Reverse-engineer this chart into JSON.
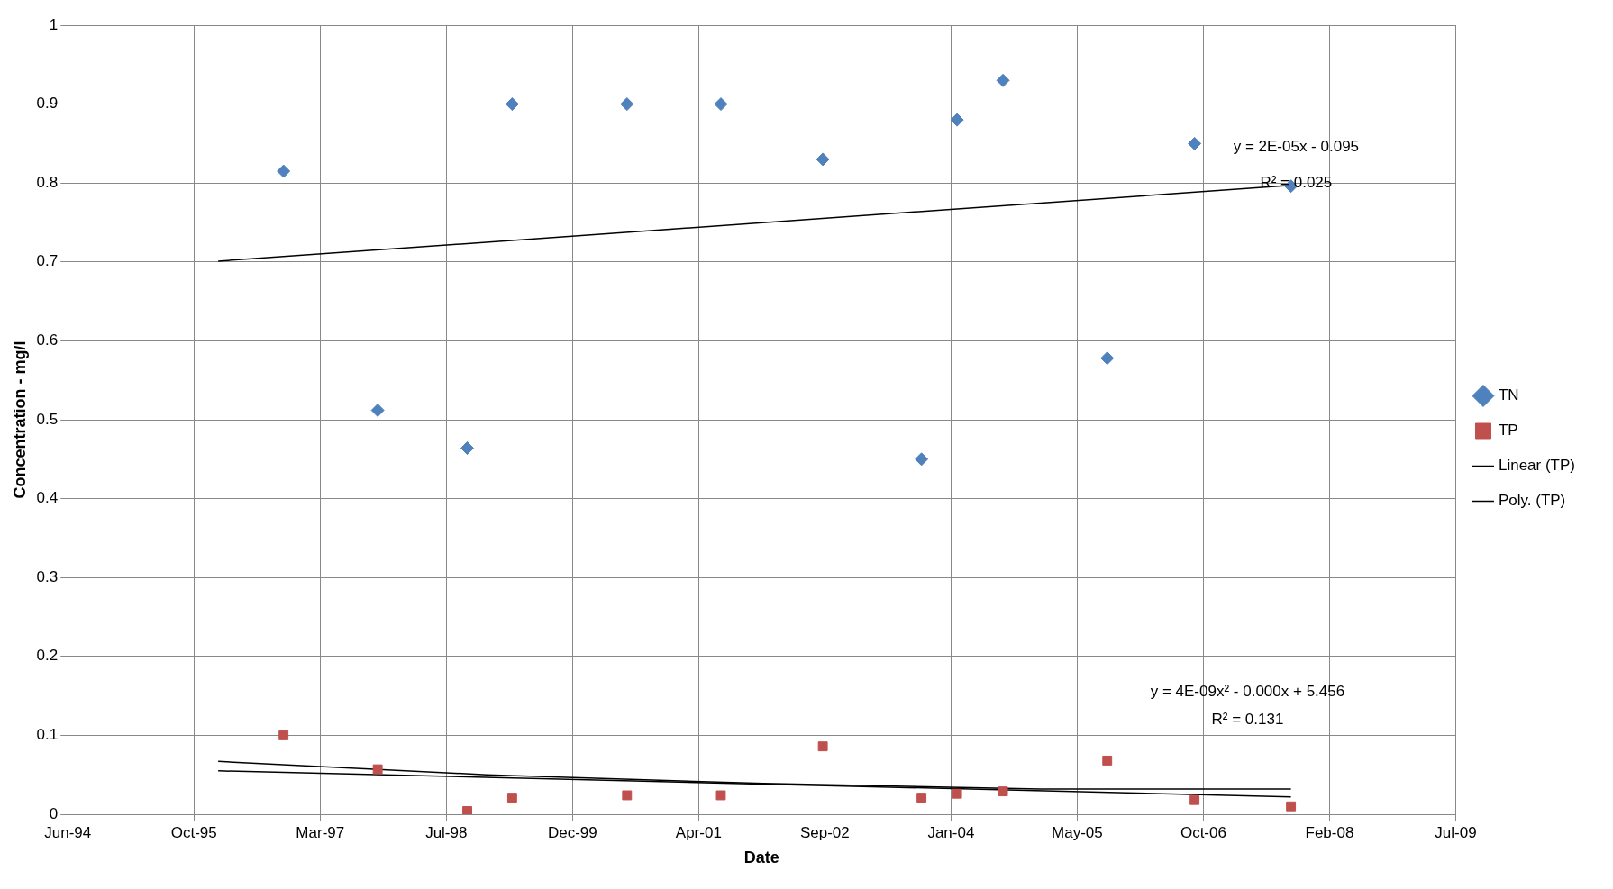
{
  "chart_data": {
    "type": "scatter",
    "xlabel": "Date",
    "ylabel": "Concentration - mg/l",
    "xlim": [
      "1994-06-15",
      "2009-07-06"
    ],
    "xticks": [
      {
        "value": "1994-06-15",
        "label": "Jun-94"
      },
      {
        "value": "1995-10-28",
        "label": "Oct-95"
      },
      {
        "value": "1997-03-11",
        "label": "Mar-97"
      },
      {
        "value": "1998-07-24",
        "label": "Jul-98"
      },
      {
        "value": "1999-12-06",
        "label": "Dec-99"
      },
      {
        "value": "2001-04-19",
        "label": "Apr-01"
      },
      {
        "value": "2002-09-01",
        "label": "Sep-02"
      },
      {
        "value": "2004-01-14",
        "label": "Jan-04"
      },
      {
        "value": "2005-05-28",
        "label": "May-05"
      },
      {
        "value": "2006-10-10",
        "label": "Oct-06"
      },
      {
        "value": "2008-02-22",
        "label": "Feb-08"
      },
      {
        "value": "2009-07-06",
        "label": "Jul-09"
      }
    ],
    "ylim": [
      0,
      1
    ],
    "yticks": [
      0,
      0.1,
      0.2,
      0.3,
      0.4,
      0.5,
      0.6,
      0.7,
      0.8,
      0.9,
      1
    ],
    "grid": true,
    "legend": "right",
    "series": [
      {
        "name": "TN",
        "type": "scatter",
        "marker": "diamond",
        "color": "#4f81bd",
        "x": [
          "1996-10-17",
          "1997-10-25",
          "1998-10-15",
          "1999-04-11",
          "2000-07-09",
          "2001-07-16",
          "2002-08-24",
          "2003-09-19",
          "2004-02-07",
          "2004-08-07",
          "2005-09-24",
          "2006-09-05",
          "2007-09-22"
        ],
        "values": [
          0.815,
          0.512,
          0.464,
          0.9,
          0.9,
          0.9,
          0.83,
          0.45,
          0.88,
          0.93,
          0.578,
          0.85,
          0.796
        ]
      },
      {
        "name": "TP",
        "type": "scatter",
        "marker": "square",
        "color": "#c0504d",
        "x": [
          "1996-10-17",
          "1997-10-25",
          "1998-10-15",
          "1999-04-11",
          "2000-07-09",
          "2001-07-16",
          "2002-08-24",
          "2003-09-19",
          "2004-02-07",
          "2004-08-07",
          "2005-09-24",
          "2006-09-05",
          "2007-09-22"
        ],
        "values": [
          0.1,
          0.057,
          0.004,
          0.021,
          0.024,
          0.024,
          0.086,
          0.021,
          0.026,
          0.029,
          0.068,
          0.018,
          0.01
        ]
      },
      {
        "type": "line",
        "marker": "none",
        "color": "#000000",
        "x": [
          "1996-02-01",
          "2007-09-22"
        ],
        "values": [
          0.701,
          0.797
        ]
      },
      {
        "name": "Linear (TP)",
        "type": "line",
        "marker": "none",
        "color": "#000000",
        "x": [
          "1996-02-01",
          "2007-09-22"
        ],
        "values": [
          0.055,
          0.022
        ]
      },
      {
        "name": "Poly. (TP)",
        "type": "line",
        "marker": "none",
        "color": "#000000",
        "x": [
          "1996-02-01",
          "1999-01-01",
          "2002-01-01",
          "2005-01-01",
          "2007-09-22"
        ],
        "values": [
          0.067,
          0.05,
          0.039,
          0.032,
          0.032
        ]
      }
    ],
    "annotations": [
      "y = 2E-05x - 0.095",
      "R² = 0.025",
      "y = 4E-09x² - 0.000x + 5.456",
      "R² = 0.131"
    ]
  }
}
